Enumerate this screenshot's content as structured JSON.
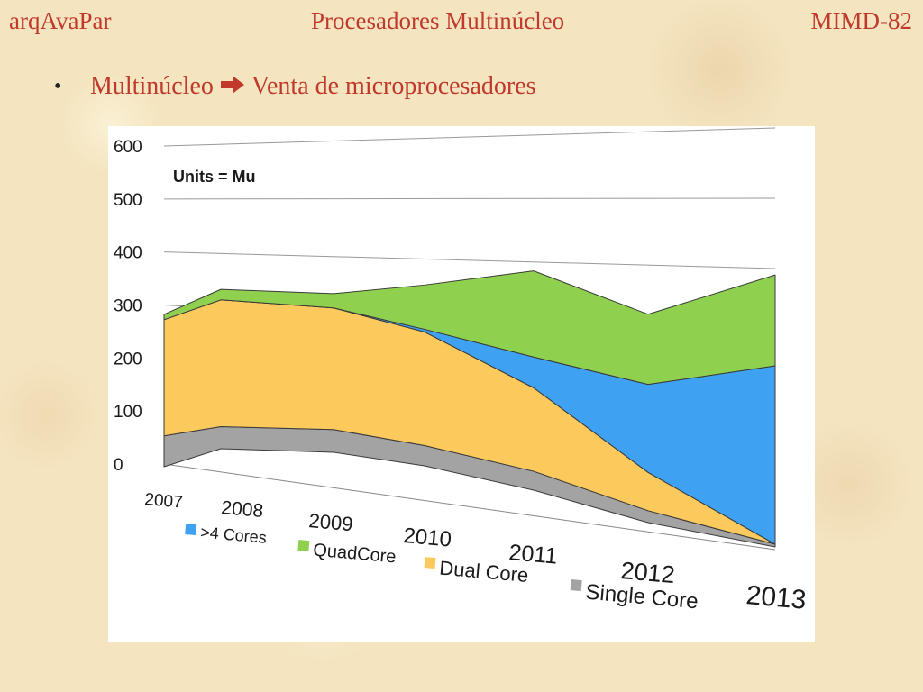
{
  "header": {
    "left": "arqAvaPar",
    "center": "Procesadores Multinúcleo",
    "right": "MIMD-82"
  },
  "bullet": {
    "symbol": "•",
    "before": "Multinúcleo",
    "arrow_icon": "arrow-right-icon",
    "after": "Venta de microprocesadores"
  },
  "colors": {
    "title_text": "#c0392b",
    "more_than_4": "#3ea1f2",
    "quad": "#8fd14f",
    "dual": "#fbc95c",
    "single": "#a3a3a3"
  },
  "chart_data": {
    "type": "area",
    "stacked": true,
    "annotation": "Units = Mu",
    "categories": [
      "2007",
      "2008",
      "2009",
      "2010",
      "2011",
      "2012",
      "2013"
    ],
    "yticks": [
      "0",
      "100",
      "200",
      "300",
      "400",
      "500",
      "600"
    ],
    "ylim": [
      0,
      600
    ],
    "grid": true,
    "legend_position": "bottom",
    "series": [
      {
        "name": "Single Core",
        "values": [
          58,
          42,
          43,
          38,
          35,
          22,
          5
        ]
      },
      {
        "name": "Dual Core",
        "values": [
          218,
          241,
          230,
          213,
          155,
          71,
          0
        ]
      },
      {
        "name": ">4 Cores",
        "values": [
          0,
          0,
          0,
          5,
          57,
          163,
          334
        ]
      },
      {
        "name": "QuadCore",
        "values": [
          10,
          20,
          27,
          83,
          160,
          130,
          170
        ]
      }
    ],
    "legend": [
      ">4 Cores",
      "QuadCore",
      "Dual Core",
      "Single Core"
    ]
  }
}
